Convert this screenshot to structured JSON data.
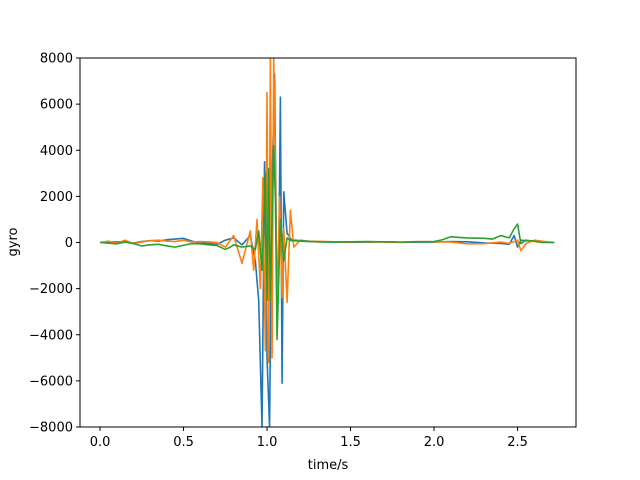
{
  "chart_data": {
    "type": "line",
    "title": "",
    "xlabel": "time/s",
    "ylabel": "gyro",
    "xlim": [
      -0.12,
      2.85
    ],
    "ylim": [
      -8000,
      8000
    ],
    "xticks": [
      0.0,
      0.5,
      1.0,
      1.5,
      2.0,
      2.5
    ],
    "xtick_labels": [
      "0.0",
      "0.5",
      "1.0",
      "1.5",
      "2.0",
      "2.5"
    ],
    "yticks": [
      -8000,
      -6000,
      -4000,
      -2000,
      0,
      2000,
      4000,
      6000,
      8000
    ],
    "ytick_labels": [
      "−8000",
      "−6000",
      "−4000",
      "−2000",
      "0",
      "2000",
      "4000",
      "6000",
      "8000"
    ],
    "grid": false,
    "legend": "none",
    "series": [
      {
        "color": "#1f77b4",
        "x": [
          0.0,
          0.05,
          0.1,
          0.15,
          0.2,
          0.25,
          0.3,
          0.35,
          0.4,
          0.45,
          0.5,
          0.55,
          0.6,
          0.65,
          0.7,
          0.75,
          0.8,
          0.85,
          0.9,
          0.93,
          0.95,
          0.97,
          0.985,
          1.0,
          1.015,
          1.03,
          1.045,
          1.06,
          1.07,
          1.08,
          1.09,
          1.1,
          1.12,
          1.15,
          1.2,
          1.25,
          1.3,
          1.4,
          1.5,
          1.6,
          1.7,
          1.8,
          1.9,
          2.0,
          2.1,
          2.2,
          2.3,
          2.4,
          2.45,
          2.48,
          2.5,
          2.52,
          2.55,
          2.6,
          2.65,
          2.72
        ],
        "y": [
          0,
          30,
          20,
          50,
          -30,
          40,
          80,
          60,
          120,
          150,
          180,
          60,
          -30,
          -40,
          -80,
          100,
          200,
          -100,
          300,
          -800,
          -2500,
          -8000,
          3500,
          -5000,
          -8000,
          2500,
          7300,
          -2500,
          -1000,
          6300,
          -6100,
          2200,
          400,
          80,
          60,
          40,
          30,
          20,
          10,
          20,
          30,
          10,
          20,
          20,
          40,
          30,
          -20,
          -40,
          -80,
          300,
          -200,
          100,
          80,
          60,
          30,
          0
        ]
      },
      {
        "color": "#ff7f0e",
        "x": [
          0.0,
          0.05,
          0.1,
          0.15,
          0.2,
          0.25,
          0.3,
          0.35,
          0.4,
          0.45,
          0.5,
          0.55,
          0.6,
          0.65,
          0.7,
          0.75,
          0.8,
          0.85,
          0.9,
          0.92,
          0.94,
          0.96,
          0.975,
          0.99,
          1.0,
          1.01,
          1.02,
          1.03,
          1.04,
          1.05,
          1.06,
          1.075,
          1.09,
          1.1,
          1.12,
          1.14,
          1.16,
          1.2,
          1.25,
          1.3,
          1.4,
          1.5,
          1.6,
          1.7,
          1.8,
          1.9,
          2.0,
          2.1,
          2.2,
          2.3,
          2.4,
          2.45,
          2.48,
          2.5,
          2.52,
          2.55,
          2.6,
          2.65,
          2.72
        ],
        "y": [
          0,
          60,
          -40,
          100,
          -50,
          20,
          80,
          100,
          60,
          40,
          100,
          20,
          40,
          30,
          0,
          -200,
          300,
          -900,
          500,
          -1200,
          1000,
          -2000,
          2800,
          -4700,
          6500,
          -5200,
          8000,
          -5000,
          8000,
          3300,
          -3700,
          2000,
          -2400,
          600,
          -2600,
          1400,
          -200,
          100,
          60,
          50,
          30,
          20,
          30,
          20,
          10,
          40,
          30,
          20,
          -60,
          -50,
          20,
          -40,
          40,
          100,
          -350,
          -50,
          100,
          50,
          0
        ]
      },
      {
        "color": "#2ca02c",
        "x": [
          0.0,
          0.05,
          0.1,
          0.15,
          0.2,
          0.25,
          0.3,
          0.35,
          0.4,
          0.45,
          0.5,
          0.55,
          0.6,
          0.65,
          0.7,
          0.75,
          0.78,
          0.8,
          0.85,
          0.9,
          0.93,
          0.95,
          0.97,
          0.99,
          1.0,
          1.01,
          1.02,
          1.03,
          1.04,
          1.05,
          1.06,
          1.08,
          1.1,
          1.12,
          1.14,
          1.17,
          1.2,
          1.25,
          1.3,
          1.4,
          1.5,
          1.6,
          1.7,
          1.8,
          1.9,
          2.0,
          2.05,
          2.1,
          2.15,
          2.2,
          2.3,
          2.35,
          2.4,
          2.45,
          2.48,
          2.5,
          2.52,
          2.55,
          2.6,
          2.65,
          2.72
        ],
        "y": [
          0,
          -30,
          -60,
          20,
          -50,
          -150,
          -100,
          -80,
          -150,
          -200,
          -120,
          -50,
          -60,
          -100,
          -130,
          -300,
          -200,
          -100,
          -200,
          -150,
          -300,
          500,
          -1200,
          3000,
          -2500,
          3200,
          -2500,
          1000,
          4200,
          1900,
          -4200,
          1000,
          -800,
          200,
          80,
          100,
          80,
          50,
          30,
          20,
          30,
          40,
          30,
          20,
          30,
          40,
          120,
          250,
          220,
          200,
          180,
          150,
          300,
          200,
          600,
          800,
          -50,
          100,
          50,
          0,
          0
        ]
      }
    ]
  }
}
